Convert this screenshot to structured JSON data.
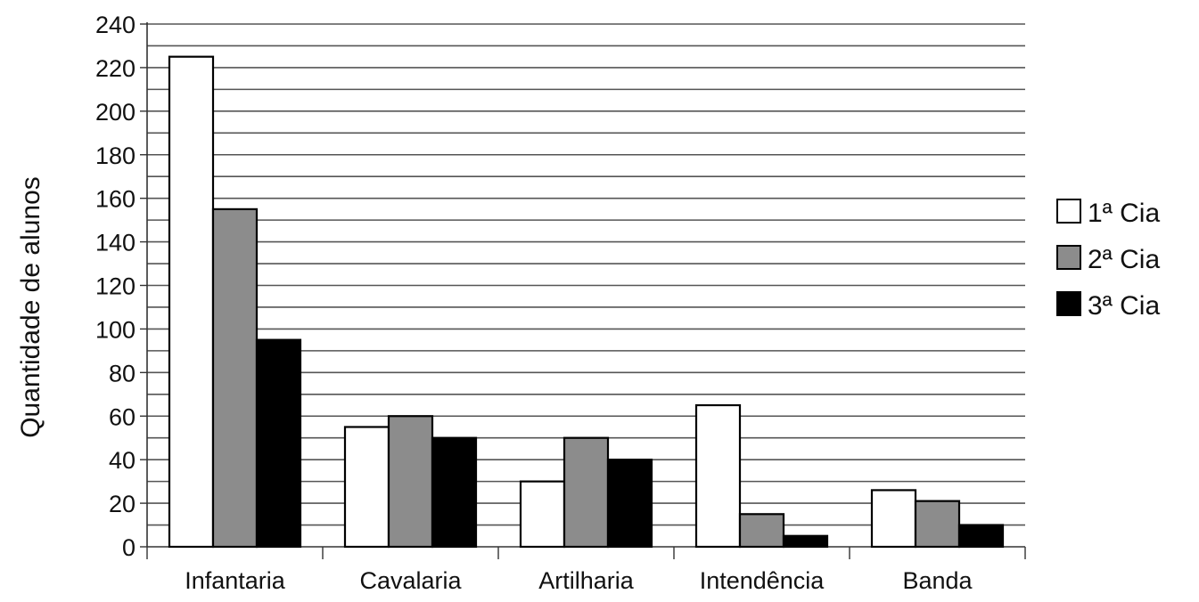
{
  "chart_data": {
    "type": "bar",
    "title": "",
    "xlabel": "",
    "ylabel": "Quantidade de alunos",
    "categories": [
      "Infantaria",
      "Cavalaria",
      "Artilharia",
      "Intendência",
      "Banda"
    ],
    "series": [
      {
        "name": "1ª Cia",
        "values": [
          225,
          55,
          30,
          65,
          26
        ],
        "color": "#ffffff"
      },
      {
        "name": "2ª Cia",
        "values": [
          155,
          60,
          50,
          15,
          21
        ],
        "color": "#8c8c8c"
      },
      {
        "name": "3ª Cia",
        "values": [
          95,
          50,
          40,
          5,
          10
        ],
        "color": "#000000"
      }
    ],
    "ylim": [
      0,
      240
    ],
    "yticks": [
      "0",
      "20",
      "40",
      "60",
      "80",
      "100",
      "120",
      "140",
      "160",
      "180",
      "200",
      "220",
      "240"
    ],
    "grid": true,
    "legend_position": "right"
  }
}
